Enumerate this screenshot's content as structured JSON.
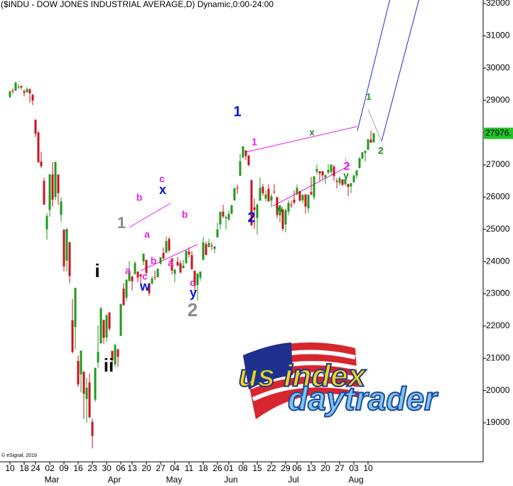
{
  "chart_data": {
    "type": "candlestick",
    "title": "($INDU - DOW JONES INDUSTRIAL AVERAGE,D) Dynamic,0:00-24:00",
    "copyright": "© eSignal, 2019",
    "logo": {
      "line1": "us index",
      "line2": "daytrader"
    },
    "categories": [
      "10",
      null,
      null,
      null,
      null,
      "18",
      null,
      null,
      null,
      "24",
      null,
      null,
      null,
      null,
      "02",
      null,
      null,
      null,
      null,
      "09",
      null,
      null,
      null,
      null,
      "16",
      null,
      null,
      null,
      null,
      "23",
      null,
      null,
      null,
      null,
      "30",
      null,
      null,
      null,
      null,
      "06",
      null,
      null,
      null,
      "13",
      null,
      null,
      null,
      null,
      "20",
      null,
      null,
      null,
      null,
      "27",
      null,
      null,
      null,
      null,
      "04",
      null,
      null,
      null,
      null,
      "11",
      null,
      null,
      null,
      null,
      "18",
      null,
      null,
      null,
      null,
      "26",
      null,
      null,
      null,
      "01",
      null,
      null,
      null,
      null,
      "08",
      null,
      null,
      null,
      null,
      "15",
      null,
      null,
      null,
      null,
      "22",
      null,
      null,
      null,
      null,
      "29",
      null,
      null,
      null,
      "06",
      null,
      null,
      null,
      null,
      "13",
      null,
      null,
      null,
      null,
      "20",
      null,
      null,
      null,
      null,
      "27",
      null,
      null,
      null,
      null,
      "03",
      null,
      null,
      null,
      null,
      "10",
      null,
      null
    ],
    "months": [
      null,
      null,
      null,
      null,
      null,
      null,
      null,
      null,
      null,
      null,
      null,
      null,
      null,
      null,
      "Mar",
      null,
      null,
      null,
      null,
      null,
      null,
      null,
      null,
      null,
      null,
      null,
      null,
      null,
      null,
      null,
      null,
      null,
      null,
      null,
      null,
      null,
      "Apr",
      null,
      null,
      null,
      null,
      null,
      null,
      null,
      null,
      null,
      null,
      null,
      null,
      null,
      null,
      null,
      null,
      null,
      null,
      null,
      null,
      "May",
      null,
      null,
      null,
      null,
      null,
      null,
      null,
      null,
      null,
      null,
      null,
      null,
      null,
      null,
      null,
      null,
      null,
      null,
      null,
      "Jun",
      null,
      null,
      null,
      null,
      null,
      null,
      null,
      null,
      null,
      null,
      null,
      null,
      null,
      null,
      null,
      null,
      null,
      null,
      null,
      null,
      null,
      "Jul",
      null,
      null,
      null,
      null,
      null,
      null,
      null,
      null,
      null,
      null,
      null,
      null,
      null,
      null,
      null,
      null,
      null,
      null,
      null,
      null,
      null,
      "Aug",
      null,
      null,
      null,
      null,
      null,
      null,
      null
    ],
    "open": [
      29100,
      29300,
      29300,
      29400,
      29440,
      29280,
      29250,
      29340,
      29170,
      28400,
      28000,
      27100,
      26500,
      25000,
      25600,
      26700,
      26000,
      26700,
      25450,
      24990,
      24030,
      24600,
      22180,
      21970,
      20920,
      20500,
      20590,
      19740,
      20250,
      19030,
      19720,
      20870,
      21470,
      22190,
      21650,
      22420,
      21230,
      20810,
      21280,
      21700,
      23160,
      22880,
      23400,
      23540,
      23620,
      23690,
      23600,
      24000,
      24050,
      23320,
      23320,
      23520,
      23520,
      23940,
      24270,
      24280,
      24700,
      24100,
      23620,
      23990,
      23950,
      23800,
      23950,
      24310,
      24200,
      23710,
      23270,
      23500,
      24050,
      24540,
      24450,
      24500,
      24390,
      24750,
      25150,
      25550,
      25340,
      25300,
      25480,
      25900,
      26290,
      26660,
      27230,
      27450,
      27290,
      26530,
      25680,
      25350,
      25890,
      26320,
      25950,
      26250,
      25890,
      26170,
      26000,
      25430,
      25620,
      25150,
      25550,
      25760,
      25920,
      26080,
      26180,
      25900,
      26080,
      25650,
      26150,
      26000,
      26790,
      26800,
      26800,
      26600,
      26760,
      26780,
      26940,
      26500,
      26430,
      26540,
      26400,
      26400,
      26330,
      26460,
      26670,
      26900,
      27200,
      27370,
      27470,
      27780,
      27700
    ],
    "high": [
      29300,
      29370,
      29570,
      29500,
      29460,
      29330,
      29410,
      29370,
      29200,
      28400,
      28050,
      27400,
      26600,
      25500,
      26710,
      27080,
      27100,
      26700,
      26000,
      24990,
      25020,
      24600,
      22840,
      23190,
      21080,
      21240,
      20590,
      20400,
      20530,
      19120,
      20710,
      22020,
      22600,
      22190,
      22380,
      22430,
      21230,
      21450,
      21290,
      22700,
      23330,
      23450,
      24010,
      23550,
      24010,
      23690,
      23620,
      24260,
      24070,
      23350,
      23550,
      23720,
      23800,
      24140,
      24440,
      24770,
      24760,
      24100,
      23760,
      24150,
      24030,
      24060,
      24360,
      24440,
      24320,
      23730,
      23640,
      23700,
      24760,
      24620,
      24700,
      24600,
      24480,
      25200,
      25550,
      25760,
      25430,
      25590,
      25760,
      26290,
      26390,
      27340,
      27580,
      27450,
      27300,
      26530,
      25950,
      25800,
      26610,
      26400,
      26200,
      26390,
      26110,
      26400,
      26000,
      25760,
      25620,
      25640,
      25900,
      25880,
      26200,
      26390,
      26200,
      26080,
      26090,
      26080,
      26630,
      26650,
      27010,
      26800,
      26800,
      26700,
      27020,
      27020,
      27000,
      26580,
      26640,
      26560,
      26600,
      26420,
      26440,
      26700,
      26840,
      27240,
      27390,
      27450,
      27800,
      28060,
      27990
    ],
    "low": [
      29070,
      29200,
      29290,
      29350,
      29330,
      29120,
      29230,
      28920,
      28850,
      27860,
      27060,
      26900,
      25760,
      24680,
      25390,
      25700,
      25900,
      25760,
      25230,
      23700,
      23690,
      23330,
      21150,
      21280,
      20120,
      19940,
      19120,
      19010,
      19140,
      18210,
      19650,
      20710,
      21450,
      21450,
      21520,
      21850,
      20740,
      20730,
      20740,
      21690,
      22620,
      22780,
      23380,
      23100,
      23580,
      23360,
      23300,
      23890,
      23600,
      22940,
      23280,
      23430,
      23500,
      23900,
      24070,
      24250,
      24290,
      23600,
      23360,
      23840,
      23630,
      23780,
      23940,
      24130,
      23750,
      23100,
      22790,
      23400,
      24040,
      24190,
      24440,
      24350,
      24260,
      24740,
      25000,
      25350,
      25000,
      25250,
      25470,
      25880,
      26100,
      26650,
      27200,
      27150,
      26960,
      25100,
      25010,
      24840,
      25880,
      26040,
      25860,
      25840,
      25680,
      26090,
      25340,
      25220,
      24950,
      24910,
      25440,
      25660,
      25780,
      26060,
      25860,
      25800,
      25490,
      25510,
      26050,
      25920,
      26700,
      26500,
      26550,
      26400,
      26700,
      26700,
      26500,
      26270,
      26350,
      26350,
      26350,
      26030,
      26120,
      26440,
      26580,
      26890,
      27170,
      27110,
      27460,
      27680,
      27690
    ],
    "close": [
      29276,
      29277,
      29551,
      29423,
      29398,
      29232,
      29348,
      29219,
      28992,
      27961,
      27081,
      26957,
      25766,
      25409,
      26703,
      25917,
      27090,
      26121,
      25864,
      23851,
      25018,
      23553,
      21200,
      23185,
      20188,
      21237,
      19899,
      20087,
      19174,
      18591,
      20704,
      21200,
      22552,
      21636,
      22327,
      21917,
      20943,
      21413,
      21052,
      22680,
      22654,
      23433,
      23719,
      23390,
      23949,
      23504,
      23537,
      24242,
      23650,
      23018,
      23475,
      23515,
      23775,
      24133,
      24101,
      24634,
      24346,
      23723,
      23749,
      23883,
      23664,
      23875,
      24331,
      24221,
      23764,
      23248,
      23625,
      23685,
      24597,
      24207,
      24576,
      24474,
      24465,
      24995,
      25548,
      25401,
      25383,
      25475,
      25742,
      26270,
      26282,
      27111,
      27572,
      27272,
      26990,
      25128,
      25606,
      25763,
      26290,
      26120,
      26080,
      25871,
      26025,
      26156,
      25445,
      25745,
      25016,
      25596,
      25813,
      25735,
      25827,
      26287,
      25890,
      26067,
      25706,
      26075,
      26086,
      26643,
      26870,
      26735,
      26672,
      26681,
      26840,
      27005,
      26652,
      26470,
      26585,
      26379,
      26540,
      26314,
      26428,
      26664,
      26828,
      27201,
      27387,
      27433,
      27791,
      27687,
      27976
    ],
    "last_label": "27976.",
    "up_color": "#1f9a1f",
    "down_color": "#c8141e",
    "last_color": "#22c22a",
    "ylim": [
      17790,
      32110
    ],
    "yticks": [
      19000,
      20000,
      21000,
      22000,
      23000,
      24000,
      25000,
      26000,
      27000,
      28000,
      29000,
      30000,
      31000,
      32000
    ],
    "annotations": [
      {
        "text": "1",
        "color": "#8c8c8c"
      },
      {
        "text": "b",
        "color": "#e61ee6"
      },
      {
        "text": "c",
        "color": "#e61ee6"
      },
      {
        "text": "x",
        "color": "#0a14d2"
      },
      {
        "text": "a",
        "color": "#e61ee6"
      },
      {
        "text": "a",
        "color": "#e61ee6"
      },
      {
        "text": "c",
        "color": "#e61ee6"
      },
      {
        "text": "b",
        "color": "#e61ee6"
      },
      {
        "text": "a",
        "color": "#e61ee6"
      },
      {
        "text": "w",
        "color": "#0a14d2"
      },
      {
        "text": "b",
        "color": "#e61ee6"
      },
      {
        "text": "c",
        "color": "#e61ee6"
      },
      {
        "text": "y",
        "color": "#0a14d2"
      },
      {
        "text": "2",
        "color": "#8c8c8c"
      },
      {
        "text": "i",
        "color": "#000000"
      },
      {
        "text": "ii",
        "color": "#000000"
      },
      {
        "text": "1",
        "color": "#0a14d2"
      },
      {
        "text": "2",
        "color": "#0a14d2"
      },
      {
        "text": "1",
        "color": "#e61ee6"
      },
      {
        "text": "x",
        "color": "#1e8c1e"
      },
      {
        "text": "w",
        "color": "#1e8c1e"
      },
      {
        "text": "y",
        "color": "#1e8c1e"
      },
      {
        "text": "2",
        "color": "#e61ee6"
      },
      {
        "text": "1",
        "color": "#1e8c1e"
      },
      {
        "text": "2",
        "color": "#1e8c1e"
      }
    ]
  }
}
